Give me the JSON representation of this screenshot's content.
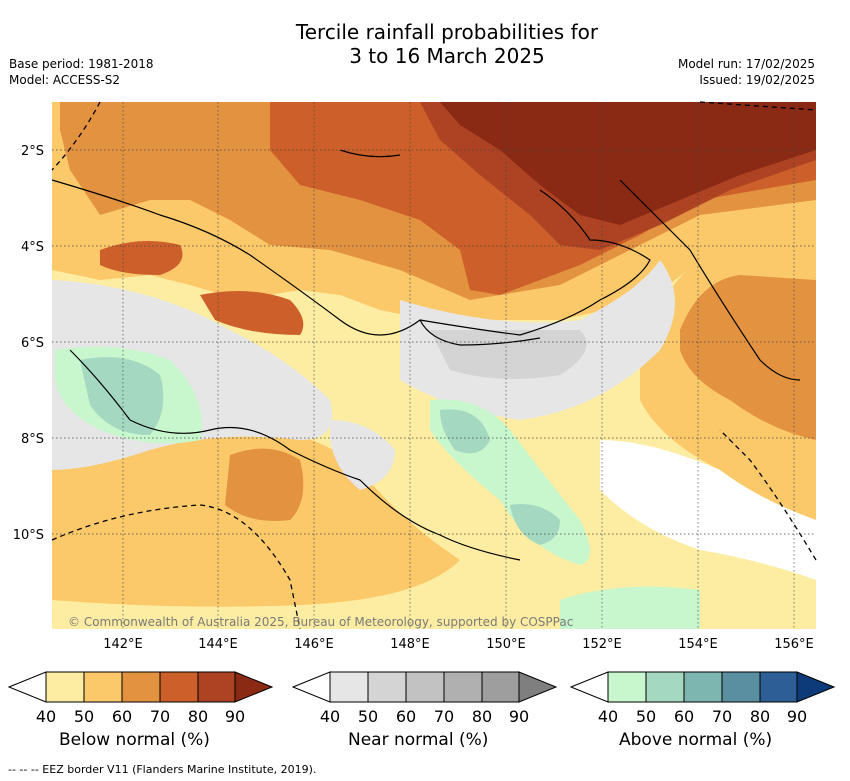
{
  "header": {
    "title_line1": "Tercile rainfall probabilities for",
    "title_line2": "3 to 16 March 2025",
    "base_period": "Base period: 1981-2018",
    "model": "Model: ACCESS-S2",
    "model_run": "Model run: 17/02/2025",
    "issued": "Issued: 19/02/2025"
  },
  "map": {
    "lat_labels": [
      "2°S",
      "4°S",
      "6°S",
      "8°S",
      "10°S"
    ],
    "lon_labels": [
      "142°E",
      "144°E",
      "146°E",
      "148°E",
      "150°E",
      "152°E",
      "154°E",
      "156°E"
    ],
    "copyright": "© Commonwealth of Australia 2025, Bureau of Meteorology, supported by COSPPac"
  },
  "legends": [
    {
      "title": "Below normal (%)",
      "ticks": [
        "40",
        "50",
        "60",
        "70",
        "80",
        "90"
      ],
      "colors": [
        "#ffffff",
        "#fdeda2",
        "#fbc96a",
        "#e3923f",
        "#cd5f2a",
        "#ad4322",
        "#8b2a14"
      ]
    },
    {
      "title": "Near normal (%)",
      "ticks": [
        "40",
        "50",
        "60",
        "70",
        "80",
        "90"
      ],
      "colors": [
        "#ffffff",
        "#e6e6e6",
        "#d4d4d4",
        "#c2c2c2",
        "#b0b0b0",
        "#9e9e9e",
        "#7f7f7f"
      ]
    },
    {
      "title": "Above normal (%)",
      "ticks": [
        "40",
        "50",
        "60",
        "70",
        "80",
        "90"
      ],
      "colors": [
        "#ffffff",
        "#c8f7cd",
        "#a4d8c1",
        "#7db6b0",
        "#5a8fa1",
        "#2d5e96",
        "#0d3b7a"
      ]
    }
  ],
  "footer": "--  --  -- EEZ border V11 (Flanders Marine Institute, 2019)."
}
